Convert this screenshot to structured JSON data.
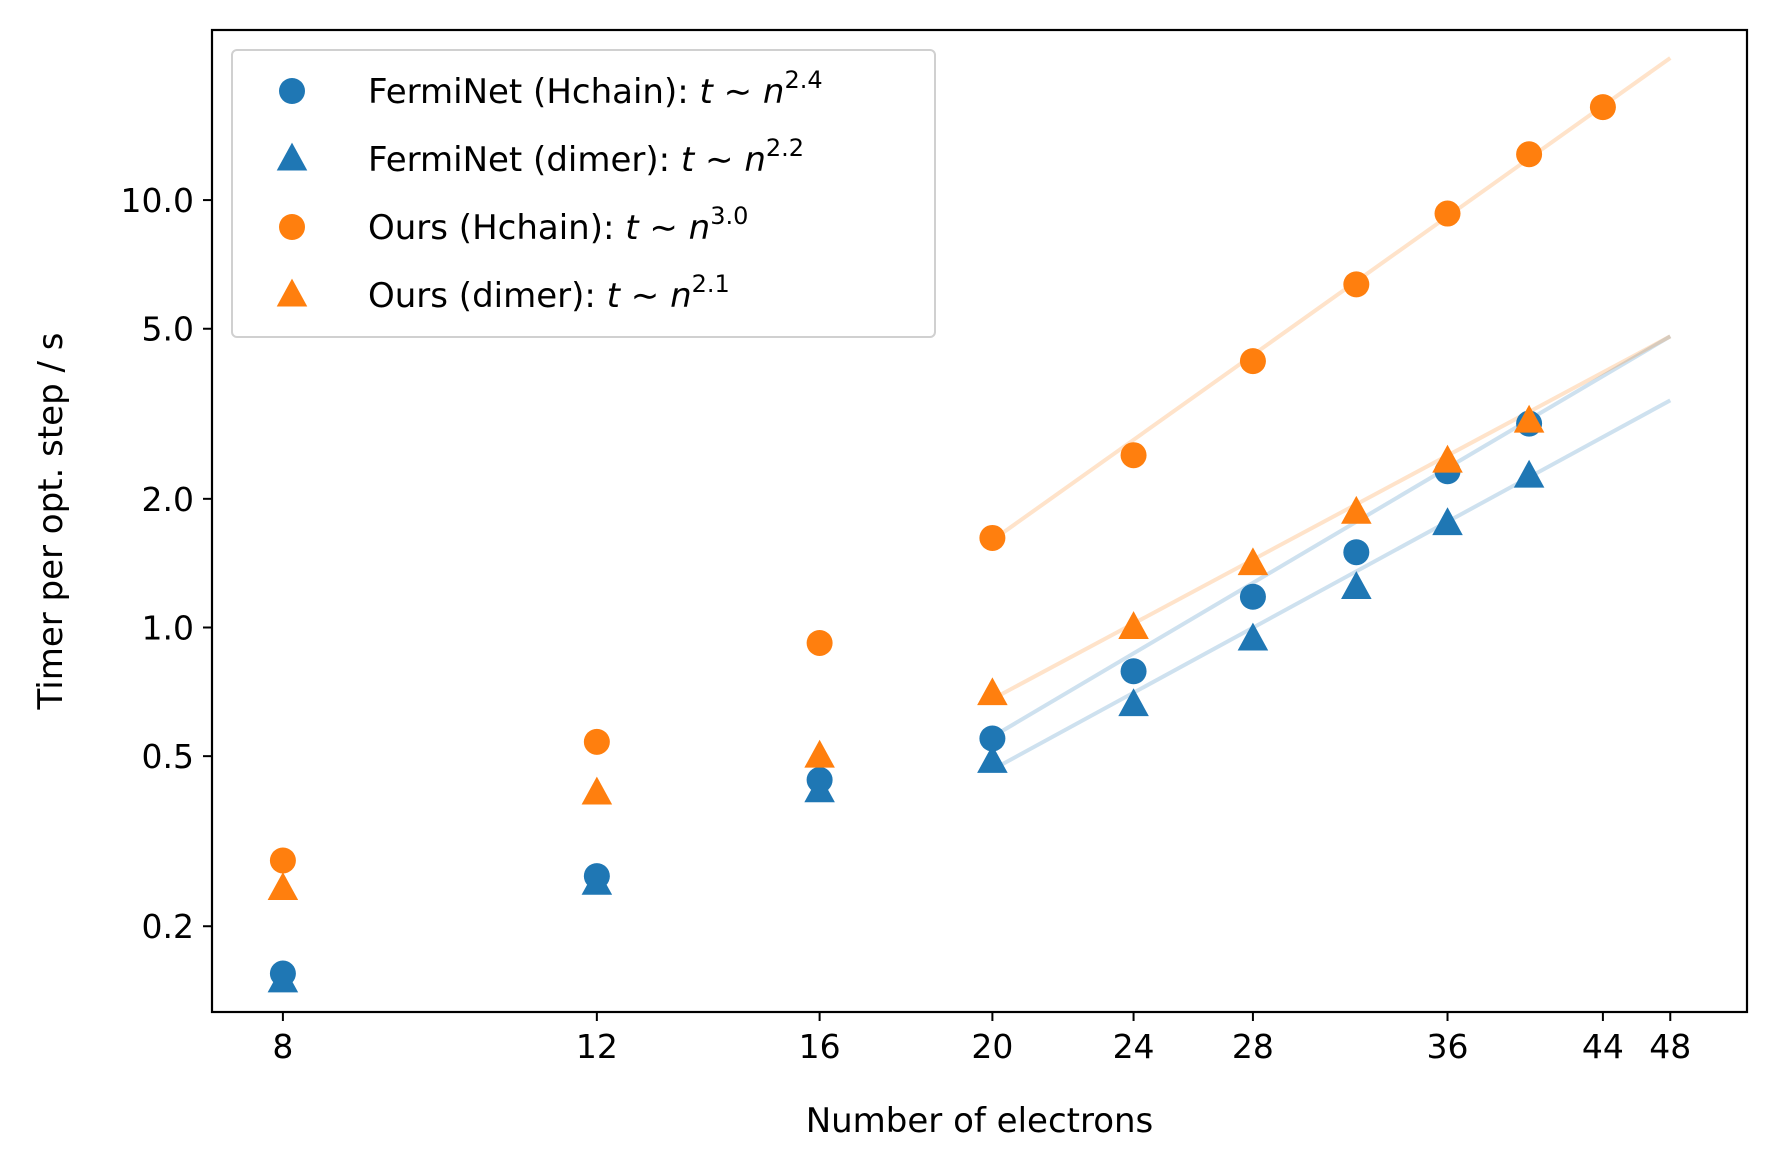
{
  "chart_data": {
    "type": "scatter",
    "xlabel": "Number of electrons",
    "ylabel": "Timer per opt. step / s",
    "x_scale": "log",
    "y_scale": "log",
    "xlim": [
      7.3,
      53
    ],
    "ylim": [
      0.126,
      25
    ],
    "xticks": [
      8,
      12,
      16,
      20,
      24,
      28,
      36,
      44,
      48
    ],
    "xtick_labels": [
      "8",
      "12",
      "16",
      "20",
      "24",
      "28",
      "36",
      "44",
      "48"
    ],
    "yticks": [
      0.2,
      0.5,
      1.0,
      2.0,
      5.0,
      10.0
    ],
    "ytick_labels": [
      "0.2",
      "0.5",
      "1.0",
      "2.0",
      "5.0",
      "10.0"
    ],
    "grid": false,
    "legend_position": "top-left",
    "series": [
      {
        "name": "FermiNet (Hchain)",
        "label_main": "FermiNet (Hchain): ",
        "exponent": "2.4",
        "marker": "circle",
        "color": "#1f77b4",
        "x": [
          8,
          12,
          16,
          20,
          24,
          28,
          32,
          36,
          40
        ],
        "y": [
          0.155,
          0.262,
          0.44,
          0.55,
          0.79,
          1.18,
          1.5,
          2.32,
          3.0
        ],
        "fit": {
          "x": [
            20,
            48
          ],
          "y": [
            0.555,
            4.8
          ]
        }
      },
      {
        "name": "FermiNet (dimer)",
        "label_main": "FermiNet (dimer): ",
        "exponent": "2.2",
        "marker": "triangle",
        "color": "#1f77b4",
        "x": [
          8,
          12,
          16,
          20,
          24,
          28,
          32,
          36,
          40
        ],
        "y": [
          0.149,
          0.252,
          0.415,
          0.486,
          0.66,
          0.94,
          1.24,
          1.75,
          2.26
        ],
        "fit": {
          "x": [
            20,
            48
          ],
          "y": [
            0.465,
            3.4
          ]
        }
      },
      {
        "name": "Ours (Hchain)",
        "label_main": "Ours (Hchain): ",
        "exponent": "3.0",
        "marker": "circle",
        "color": "#ff7f0e",
        "x": [
          8,
          12,
          16,
          20,
          24,
          28,
          32,
          36,
          40,
          44
        ],
        "y": [
          0.285,
          0.54,
          0.92,
          1.62,
          2.53,
          4.2,
          6.35,
          9.3,
          12.8,
          16.5
        ],
        "fit": {
          "x": [
            20,
            48
          ],
          "y": [
            1.6,
            21.5
          ]
        }
      },
      {
        "name": "Ours (dimer)",
        "label_main": "Ours (dimer): ",
        "exponent": "2.1",
        "marker": "triangle",
        "color": "#ff7f0e",
        "x": [
          8,
          12,
          16,
          20,
          24,
          28,
          32,
          36,
          40
        ],
        "y": [
          0.245,
          0.41,
          0.5,
          0.7,
          1.0,
          1.41,
          1.86,
          2.45,
          3.04
        ],
        "fit": {
          "x": [
            20,
            48
          ],
          "y": [
            0.68,
            4.8
          ]
        }
      }
    ]
  }
}
